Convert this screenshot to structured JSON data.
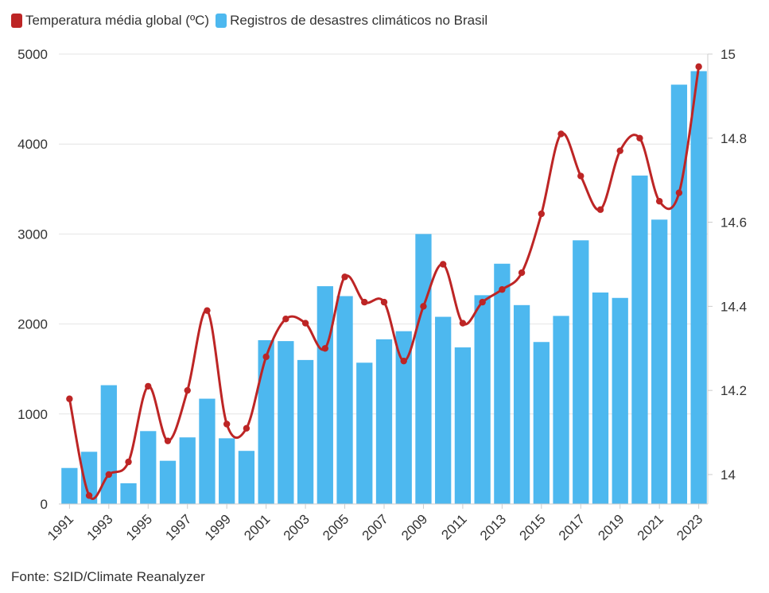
{
  "chart_data": {
    "type": "bar",
    "title": "",
    "xlabel": "",
    "ylabel": "",
    "categories": [
      "1991",
      "1992",
      "1993",
      "1994",
      "1995",
      "1996",
      "1997",
      "1998",
      "1999",
      "2000",
      "2001",
      "2002",
      "2003",
      "2004",
      "2005",
      "2006",
      "2007",
      "2008",
      "2009",
      "2010",
      "2011",
      "2012",
      "2013",
      "2014",
      "2015",
      "2016",
      "2017",
      "2018",
      "2019",
      "2020",
      "2021",
      "2022",
      "2023"
    ],
    "x_tick_labels": [
      "1991",
      "1993",
      "1995",
      "1997",
      "1999",
      "2001",
      "2003",
      "2005",
      "2007",
      "2009",
      "2011",
      "2013",
      "2015",
      "2017",
      "2019",
      "2021",
      "2023"
    ],
    "series": [
      {
        "name": "Registros de desastres climáticos no Brasil",
        "type": "bar",
        "axis": "left",
        "color": "#4db8ef",
        "values": [
          400,
          580,
          1320,
          230,
          810,
          480,
          740,
          1170,
          730,
          590,
          1820,
          1810,
          1600,
          2420,
          2310,
          1570,
          1830,
          1920,
          3000,
          2080,
          1740,
          2320,
          2670,
          2210,
          1800,
          2090,
          2930,
          2350,
          2290,
          3650,
          3160,
          4660,
          4810
        ]
      },
      {
        "name": "Temperatura média global (ºC)",
        "type": "line",
        "axis": "right",
        "color": "#bd2525",
        "values": [
          14.18,
          13.95,
          14.0,
          14.03,
          14.21,
          14.08,
          14.2,
          14.39,
          14.12,
          14.11,
          14.28,
          14.37,
          14.36,
          14.3,
          14.47,
          14.41,
          14.41,
          14.27,
          14.4,
          14.5,
          14.36,
          14.41,
          14.44,
          14.48,
          14.62,
          14.81,
          14.71,
          14.63,
          14.77,
          14.8,
          14.65,
          14.67,
          14.97
        ]
      }
    ],
    "y_left": {
      "ylim": [
        0,
        5000
      ],
      "ticks": [
        0,
        1000,
        2000,
        3000,
        4000,
        5000
      ]
    },
    "y_right": {
      "ylim": [
        13.93,
        15.0
      ],
      "ticks": [
        14,
        14.2,
        14.4,
        14.6,
        14.8,
        15
      ]
    },
    "grid": true,
    "legend_position": "top-left"
  },
  "legend": {
    "line_label": "Temperatura média global (ºC)",
    "bar_label": "Registros de desastres climáticos no Brasil",
    "line_color": "#bd2525",
    "bar_color": "#4db8ef"
  },
  "source": "Fonte: S2ID/Climate Reanalyzer"
}
